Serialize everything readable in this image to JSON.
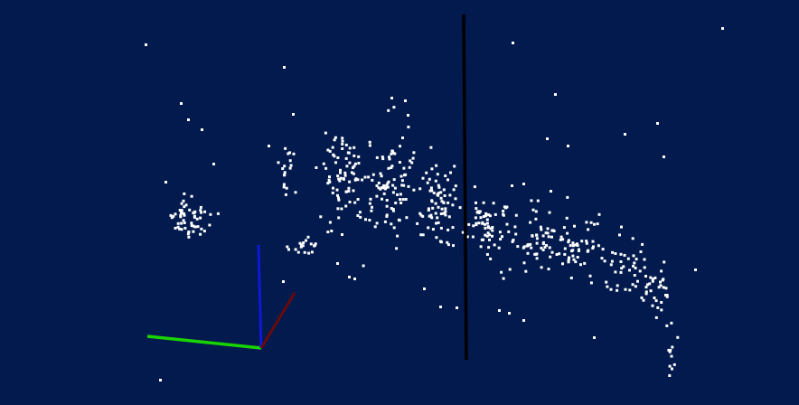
{
  "viewer": {
    "background": "#021a4d",
    "point_color": "#ffffff",
    "axis_colors": {
      "x": "#6a0a0a",
      "y": "#19d400",
      "z": "#1018d8"
    },
    "divider_color": "#000000",
    "icons": {
      "axes": "xyz-axes-gizmo-icon",
      "divider": "split-line"
    }
  }
}
